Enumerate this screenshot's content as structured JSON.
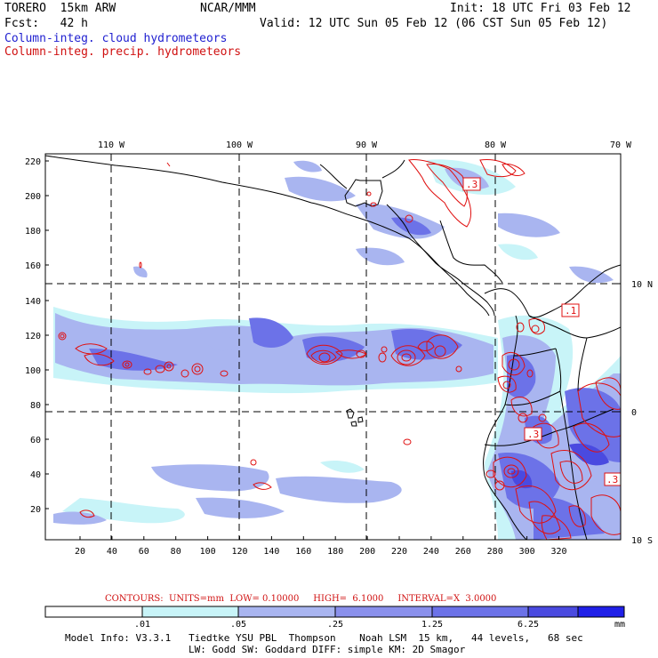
{
  "header": {
    "model": "TORERO  15km ARW",
    "org": "NCAR/MMM",
    "init": "Init: 18 UTC Fri 03 Feb 12",
    "fcst": "Fcst:   42 h",
    "valid": "Valid: 12 UTC Sun 05 Feb 12 (06 CST Sun 05 Feb 12)",
    "field1": "Column-integ. cloud hydrometeors",
    "field2": "Column-integ. precip. hydrometeors"
  },
  "colors": {
    "cloud_light": "#c8f4f8",
    "cloud_mid": "#a9b5f0",
    "cloud_dark": "#6c72e8",
    "cloud_darker": "#4a4ae0",
    "precip": "#e01010"
  },
  "axes": {
    "top_labels": [
      "110 W",
      "100 W",
      "90 W",
      "80 W",
      "70 W"
    ],
    "right_labels": [
      "10 N",
      "0",
      "10 S"
    ],
    "left_labels": [
      "220",
      "200",
      "180",
      "160",
      "140",
      "120",
      "100",
      "80",
      "60",
      "40",
      "20"
    ],
    "bottom_labels": [
      "20",
      "40",
      "60",
      "80",
      "100",
      "120",
      "140",
      "160",
      "180",
      "200",
      "220",
      "240",
      "260",
      "280",
      "300",
      "320"
    ]
  },
  "contour_labels": [
    ".3",
    ".1",
    ".3",
    ".3"
  ],
  "contour_info": {
    "prefix": "CONTOURS:  UNITS=mm  LOW= 0.10000",
    "high": "HIGH=  6.1000",
    "interval": "INTERVAL=X  3.0000"
  },
  "legend": {
    "breaks": [
      ".01",
      ".05",
      ".25",
      "1.25",
      "6.25"
    ],
    "unit": "mm",
    "colors": [
      "#ffffff",
      "#c8f4f8",
      "#a9b5f0",
      "#8a90ec",
      "#6c72e8",
      "#4a4ae0",
      "#2020e8"
    ]
  },
  "footer": {
    "line1": "Model Info: V3.3.1   Tiedtke YSU PBL  Thompson    Noah LSM  15 km,   44 levels,   68 sec",
    "line2": "LW: Godd SW: Goddard DIFF: simple KM: 2D Smagor"
  }
}
